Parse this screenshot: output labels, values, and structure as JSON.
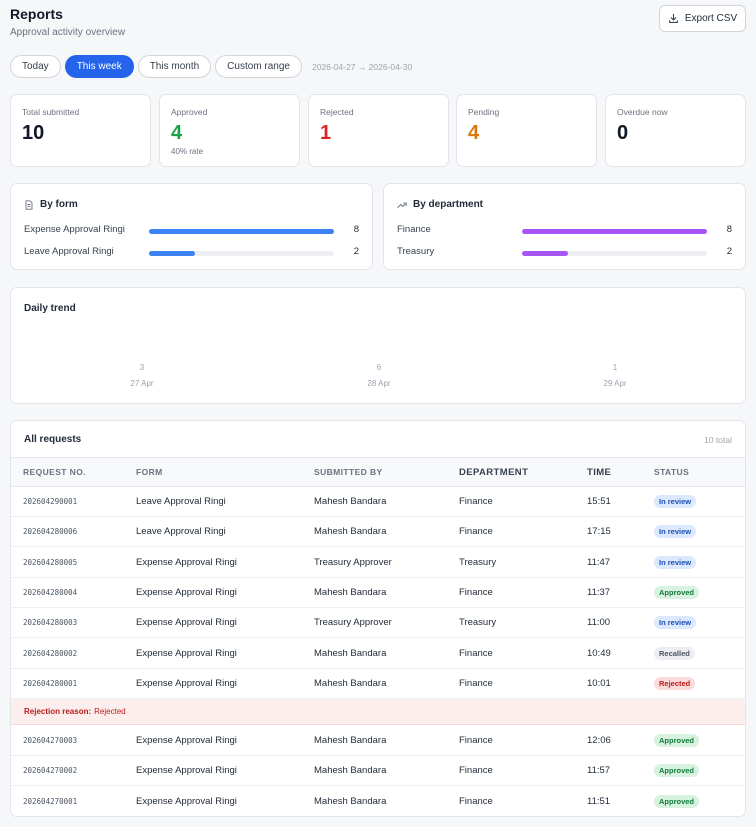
{
  "header": {
    "title": "Reports",
    "subtitle": "Approval activity overview",
    "export_label": "Export CSV"
  },
  "filters": {
    "chips": [
      "Today",
      "This week",
      "This month",
      "Custom range"
    ],
    "active_chip": "This week",
    "range": "2026-04-27 → 2026-04-30"
  },
  "stats": [
    {
      "label": "Total submitted",
      "value": "10",
      "color": "#111827",
      "sub": ""
    },
    {
      "label": "Approved",
      "value": "4",
      "color": "#16a34a",
      "sub": "40% rate"
    },
    {
      "label": "Rejected",
      "value": "1",
      "color": "#dc2626",
      "sub": ""
    },
    {
      "label": "Pending",
      "value": "4",
      "color": "#d97706",
      "sub": ""
    },
    {
      "label": "Overdue now",
      "value": "0",
      "color": "#111827",
      "sub": ""
    }
  ],
  "by_form": {
    "title": "By form",
    "bar_color": "#3b82f6",
    "rows": [
      {
        "name": "Expense Approval Ringi",
        "count": "8",
        "fraction": 1.0
      },
      {
        "name": "Leave Approval Ringi",
        "count": "2",
        "fraction": 0.25
      }
    ]
  },
  "by_department": {
    "title": "By department",
    "bar_color": "#a855f7",
    "rows": [
      {
        "name": "Finance",
        "count": "8",
        "fraction": 1.0
      },
      {
        "name": "Treasury",
        "count": "2",
        "fraction": 0.25
      }
    ]
  },
  "trend": {
    "title": "Daily trend",
    "days": [
      {
        "count": "3",
        "date": "27 Apr"
      },
      {
        "count": "6",
        "date": "28 Apr"
      },
      {
        "count": "1",
        "date": "29 Apr"
      }
    ]
  },
  "requests": {
    "title": "All requests",
    "count": "10 total",
    "columns": [
      "REQUEST NO.",
      "FORM",
      "SUBMITTED BY",
      "DEPARTMENT",
      "TIME",
      "STATUS"
    ],
    "rows": [
      {
        "no": "202604290001",
        "form": "Leave Approval Ringi",
        "by": "Mahesh Bandara",
        "dept": "Finance",
        "time": "15:51",
        "status": "In review",
        "kind": "review"
      },
      {
        "no": "202604280006",
        "form": "Leave Approval Ringi",
        "by": "Mahesh Bandara",
        "dept": "Finance",
        "time": "17:15",
        "status": "In review",
        "kind": "review"
      },
      {
        "no": "202604280005",
        "form": "Expense Approval Ringi",
        "by": "Treasury Approver",
        "dept": "Treasury",
        "time": "11:47",
        "status": "In review",
        "kind": "review"
      },
      {
        "no": "202604280004",
        "form": "Expense Approval Ringi",
        "by": "Mahesh Bandara",
        "dept": "Finance",
        "time": "11:37",
        "status": "Approved",
        "kind": "approved"
      },
      {
        "no": "202604280003",
        "form": "Expense Approval Ringi",
        "by": "Treasury Approver",
        "dept": "Treasury",
        "time": "11:00",
        "status": "In review",
        "kind": "review"
      },
      {
        "no": "202604280002",
        "form": "Expense Approval Ringi",
        "by": "Mahesh Bandara",
        "dept": "Finance",
        "time": "10:49",
        "status": "Recalled",
        "kind": "recalled"
      },
      {
        "no": "202604280001",
        "form": "Expense Approval Ringi",
        "by": "Mahesh Bandara",
        "dept": "Finance",
        "time": "10:01",
        "status": "Rejected",
        "kind": "rejected",
        "reason_label": "Rejection reason:",
        "reason": "Rejected"
      },
      {
        "no": "202604270003",
        "form": "Expense Approval Ringi",
        "by": "Mahesh Bandara",
        "dept": "Finance",
        "time": "12:06",
        "status": "Approved",
        "kind": "approved"
      },
      {
        "no": "202604270002",
        "form": "Expense Approval Ringi",
        "by": "Mahesh Bandara",
        "dept": "Finance",
        "time": "11:57",
        "status": "Approved",
        "kind": "approved"
      },
      {
        "no": "202604270001",
        "form": "Expense Approval Ringi",
        "by": "Mahesh Bandara",
        "dept": "Finance",
        "time": "11:51",
        "status": "Approved",
        "kind": "approved"
      }
    ]
  }
}
